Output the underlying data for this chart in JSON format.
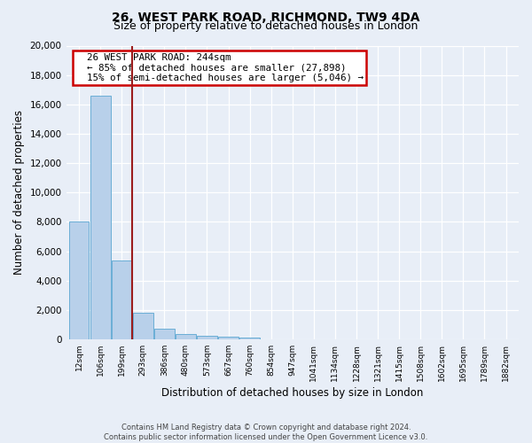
{
  "title": "26, WEST PARK ROAD, RICHMOND, TW9 4DA",
  "subtitle": "Size of property relative to detached houses in London",
  "xlabel": "Distribution of detached houses by size in London",
  "ylabel": "Number of detached properties",
  "footnote1": "Contains HM Land Registry data © Crown copyright and database right 2024.",
  "footnote2": "Contains public sector information licensed under the Open Government Licence v3.0.",
  "bar_labels": [
    "12sqm",
    "106sqm",
    "199sqm",
    "293sqm",
    "386sqm",
    "480sqm",
    "573sqm",
    "667sqm",
    "760sqm",
    "854sqm",
    "947sqm",
    "1041sqm",
    "1134sqm",
    "1228sqm",
    "1321sqm",
    "1415sqm",
    "1508sqm",
    "1602sqm",
    "1695sqm",
    "1789sqm",
    "1882sqm"
  ],
  "bar_heights": [
    8050,
    16600,
    5350,
    1830,
    700,
    380,
    230,
    170,
    140,
    0,
    0,
    0,
    0,
    0,
    0,
    0,
    0,
    0,
    0,
    0,
    0
  ],
  "bar_color": "#b8d0ea",
  "bar_edge_color": "#6aaed6",
  "property_line_x": 2.5,
  "property_line_color": "#9b1c1c",
  "property_sqm": 244,
  "pct_smaller": 85,
  "n_smaller": 27898,
  "pct_larger": 15,
  "n_larger": 5046,
  "annotation_box_color": "#ffffff",
  "annotation_box_edge": "#cc0000",
  "ylim": [
    0,
    20000
  ],
  "yticks": [
    0,
    2000,
    4000,
    6000,
    8000,
    10000,
    12000,
    14000,
    16000,
    18000,
    20000
  ],
  "background_color": "#e8eef7",
  "plot_background": "#e8eef7",
  "grid_color": "#c8d4e8",
  "title_fontsize": 10,
  "subtitle_fontsize": 9
}
